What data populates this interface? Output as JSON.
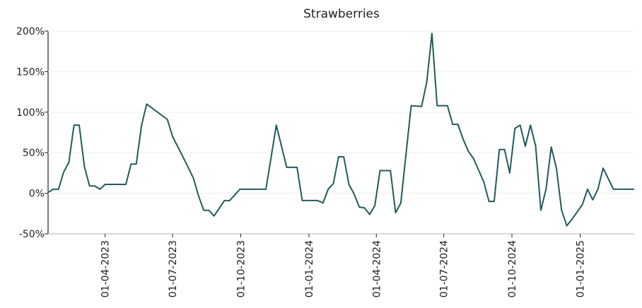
{
  "chart_data": {
    "type": "line",
    "title": "Strawberries",
    "x": [
      "2023-01-14",
      "2023-01-21",
      "2023-01-28",
      "2023-02-04",
      "2023-02-11",
      "2023-02-18",
      "2023-02-25",
      "2023-03-04",
      "2023-03-11",
      "2023-03-18",
      "2023-03-25",
      "2023-04-01",
      "2023-04-08",
      "2023-04-29",
      "2023-05-06",
      "2023-05-13",
      "2023-05-20",
      "2023-05-27",
      "2023-06-24",
      "2023-07-01",
      "2023-07-15",
      "2023-07-29",
      "2023-08-05",
      "2023-08-12",
      "2023-08-19",
      "2023-08-26",
      "2023-09-09",
      "2023-09-16",
      "2023-09-30",
      "2023-11-04",
      "2023-11-18",
      "2023-12-02",
      "2023-12-16",
      "2023-12-23",
      "2024-01-13",
      "2024-01-20",
      "2024-01-27",
      "2024-02-03",
      "2024-02-10",
      "2024-02-17",
      "2024-02-24",
      "2024-03-02",
      "2024-03-09",
      "2024-03-16",
      "2024-03-23",
      "2024-03-30",
      "2024-04-06",
      "2024-04-20",
      "2024-04-27",
      "2024-05-04",
      "2024-05-18",
      "2024-06-01",
      "2024-06-08",
      "2024-06-15",
      "2024-06-22",
      "2024-07-06",
      "2024-07-13",
      "2024-07-20",
      "2024-07-27",
      "2024-08-03",
      "2024-08-10",
      "2024-08-24",
      "2024-08-31",
      "2024-09-07",
      "2024-09-14",
      "2024-09-21",
      "2024-09-28",
      "2024-10-05",
      "2024-10-12",
      "2024-10-19",
      "2024-10-26",
      "2024-11-02",
      "2024-11-09",
      "2024-11-16",
      "2024-11-23",
      "2024-11-30",
      "2024-12-07",
      "2024-12-14",
      "2024-12-21",
      "2025-01-04",
      "2025-01-11",
      "2025-01-18",
      "2025-01-25",
      "2025-02-01",
      "2025-02-08",
      "2025-02-15",
      "2025-03-15"
    ],
    "series": [
      {
        "name": "Strawberries",
        "color": "#215b5c",
        "values": [
          1,
          5,
          5,
          26,
          38,
          84,
          84,
          33,
          9,
          9,
          5,
          11,
          11,
          11,
          36,
          36,
          83,
          110,
          91,
          70,
          45,
          19,
          -3,
          -21,
          -21,
          -28,
          -9,
          -9,
          5,
          5,
          84,
          32,
          32,
          -9,
          -9,
          -12,
          5,
          12,
          45,
          45,
          11,
          -1,
          -17,
          -18,
          -26,
          -15,
          28,
          28,
          -24,
          -12,
          108,
          107,
          137,
          197,
          108,
          108,
          85,
          85,
          67,
          52,
          43,
          14,
          -10,
          -10,
          54,
          54,
          25,
          80,
          84,
          58,
          84,
          58,
          -21,
          5,
          57,
          31,
          -21,
          -40,
          -32,
          -14,
          5,
          -8,
          5,
          31,
          18,
          5,
          5
        ]
      }
    ],
    "xlim": [
      "2023-01-14",
      "2025-03-15"
    ],
    "xticks": [
      {
        "value": "2023-04-01",
        "label": "01-04-2023"
      },
      {
        "value": "2023-07-01",
        "label": "01-07-2023"
      },
      {
        "value": "2023-10-01",
        "label": "01-10-2023"
      },
      {
        "value": "2024-01-01",
        "label": "01-01-2024"
      },
      {
        "value": "2024-04-01",
        "label": "01-04-2024"
      },
      {
        "value": "2024-07-01",
        "label": "01-07-2024"
      },
      {
        "value": "2024-10-01",
        "label": "01-10-2024"
      },
      {
        "value": "2025-01-01",
        "label": "01-01-2025"
      }
    ],
    "ylim": [
      -50,
      200
    ],
    "yticks": [
      {
        "value": -50,
        "label": "-50%"
      },
      {
        "value": 0,
        "label": "0%"
      },
      {
        "value": 50,
        "label": "50%"
      },
      {
        "value": 100,
        "label": "100%"
      },
      {
        "value": 150,
        "label": "150%"
      },
      {
        "value": 200,
        "label": "200%"
      }
    ],
    "grid": true
  }
}
